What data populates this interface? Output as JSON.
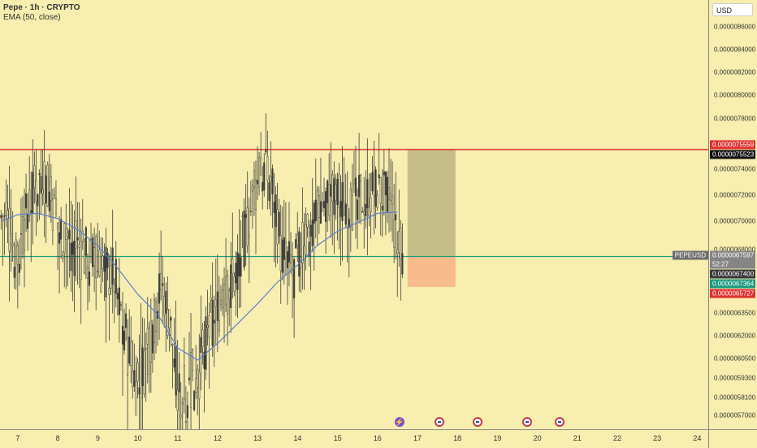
{
  "legend": {
    "title": "Pepe · 1h · CRYPTO",
    "indicator": "EMA (50, close)"
  },
  "currency": "USD",
  "price_axis": {
    "ticks": [
      "0.0000086000",
      "0.0000084000",
      "0.0000082000",
      "0.0000080000",
      "0.0000078000",
      "0.0000074000",
      "0.0000072000",
      "0.0000070000",
      "0.0000068000",
      "0.0000063500",
      "0.0000062000",
      "0.0000060500",
      "0.0000059300",
      "0.0000058100",
      "0.0000057000"
    ],
    "badges": [
      {
        "label": "0.0000075559",
        "color": "#e03030"
      },
      {
        "label": "0.0000075523",
        "color": "#101010"
      },
      {
        "label": "0.0000067597",
        "color": "#858585"
      },
      {
        "label": "52:27",
        "color": "#858585"
      },
      {
        "label": "0.0000067400",
        "color": "#3a3a3a"
      },
      {
        "label": "0.0000067364",
        "color": "#1d9a80"
      },
      {
        "label": "0.0000065727",
        "color": "#e03030"
      }
    ]
  },
  "symbol_tag": "PEPEUSD",
  "time_axis": {
    "ticks": [
      "7",
      "8",
      "9",
      "10",
      "11",
      "12",
      "13",
      "14",
      "15",
      "16",
      "17",
      "18",
      "19",
      "20",
      "21",
      "22",
      "23",
      "24"
    ]
  },
  "colors": {
    "background": "#f7eeaf",
    "resistance": "#e03030",
    "current_price": "#1aa07a",
    "ema": "#5b7fd0",
    "target_zone": "#c6be89",
    "stop_zone": "#f7bb8c",
    "candle": "#3c3c3c"
  },
  "chart_data": {
    "type": "line",
    "symbol": "PEPEUSD",
    "timeframe": "1h",
    "x_range": [
      "7",
      "24"
    ],
    "series": [
      {
        "name": "EMA (50, close)",
        "x": [
          6.6,
          7,
          7.5,
          8,
          8.5,
          9,
          9.5,
          10,
          10.5,
          11,
          11.5,
          12,
          12.5,
          13,
          13.5,
          14,
          14.5,
          15,
          15.5,
          16,
          16.5
        ],
        "values": [
          7e-06,
          7.05e-06,
          7.06e-06,
          7.02e-06,
          6.94e-06,
          6.83e-06,
          6.69e-06,
          6.51e-06,
          6.34e-06,
          6.12e-06,
          6.04e-06,
          6.15e-06,
          6.28e-06,
          6.43e-06,
          6.61e-06,
          6.71e-06,
          6.83e-06,
          6.93e-06,
          6.99e-06,
          7.06e-06,
          7.07e-06
        ]
      },
      {
        "name": "Price (approx.)",
        "x": [
          6.6,
          7,
          7.3,
          7.6,
          7.8,
          8,
          8.3,
          8.6,
          9,
          9.4,
          9.8,
          10,
          10.3,
          10.6,
          10.9,
          11,
          11.3,
          11.6,
          11.9,
          12.2,
          12.5,
          12.8,
          13.1,
          13.4,
          13.6,
          13.9,
          14.2,
          14.5,
          14.8,
          15.1,
          15.4,
          15.7,
          16,
          16.3,
          16.5,
          16.6
        ],
        "values": [
          7.05e-06,
          6.77e-06,
          7.15e-06,
          7.38e-06,
          7.2e-06,
          6.95e-06,
          6.87e-06,
          6.8e-06,
          6.69e-06,
          6.64e-06,
          6.05e-06,
          5.86e-06,
          6.16e-06,
          6.59e-06,
          6.12e-06,
          5.8e-06,
          5.88e-06,
          6.02e-06,
          6.36e-06,
          6.48e-06,
          6.7e-06,
          7.05e-06,
          7.42e-06,
          7.27e-06,
          6.77e-06,
          6.64e-06,
          6.87e-06,
          7.13e-06,
          7.19e-06,
          7.16e-06,
          7.13e-06,
          7.19e-06,
          7.24e-06,
          7.16e-06,
          6.81e-06,
          6.74e-06
        ]
      }
    ],
    "levels": [
      {
        "name": "resistance",
        "value": 7.5559e-06
      },
      {
        "name": "current",
        "value": 6.7597e-06
      }
    ],
    "position": {
      "entry": 6.7597e-06,
      "target": 7.5559e-06,
      "stop": 6.5727e-06,
      "x_from": 16.75,
      "x_to": 17.95
    }
  }
}
